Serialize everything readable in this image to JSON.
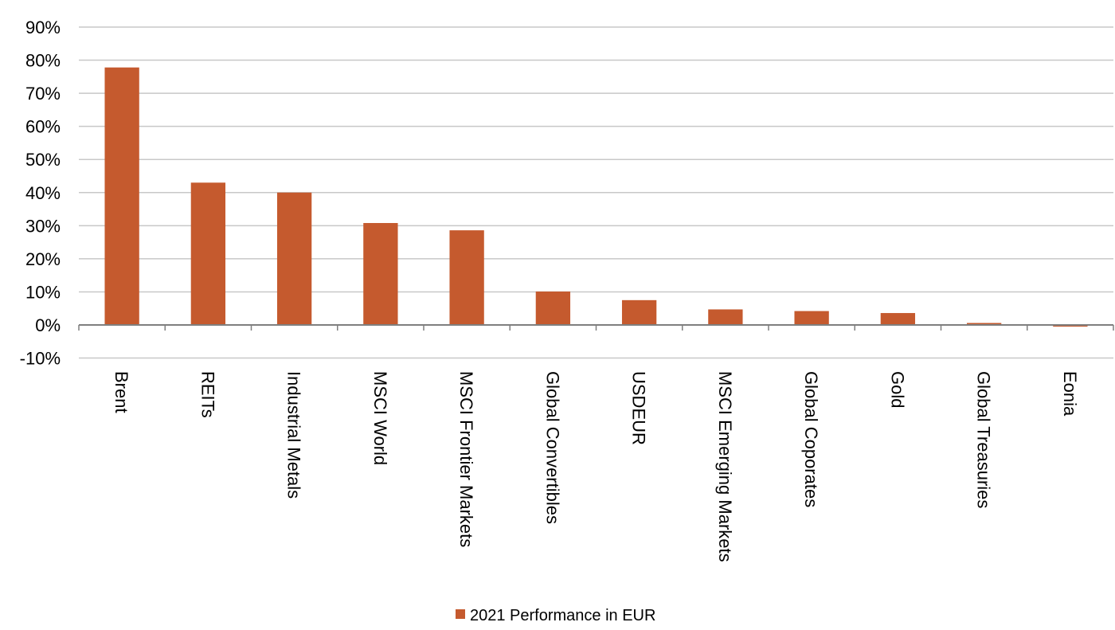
{
  "chart_data": {
    "type": "bar",
    "categories": [
      "Brent",
      "REITs",
      "Industrial Metals",
      "MSCI World",
      "MSCI Frontier Markets",
      "Global Convertibles",
      "USDEUR",
      "MSCI Emerging Markets",
      "Global Coporates",
      "Gold",
      "Global Treasuries",
      "Eonia"
    ],
    "series": [
      {
        "name": "2021 Performance in EUR",
        "values": [
          77.8,
          43.0,
          40.0,
          30.8,
          28.6,
          10.1,
          7.5,
          4.7,
          4.2,
          3.6,
          0.6,
          -0.5
        ],
        "color": "#c55a2e"
      }
    ],
    "ylim": [
      -10,
      90
    ],
    "ytick_step": 10,
    "ytick_labels": [
      "-10%",
      "0%",
      "10%",
      "20%",
      "30%",
      "40%",
      "50%",
      "60%",
      "70%",
      "80%",
      "90%"
    ],
    "grid": true,
    "legend_position": "bottom-center",
    "title": "",
    "xlabel": "",
    "ylabel": ""
  }
}
